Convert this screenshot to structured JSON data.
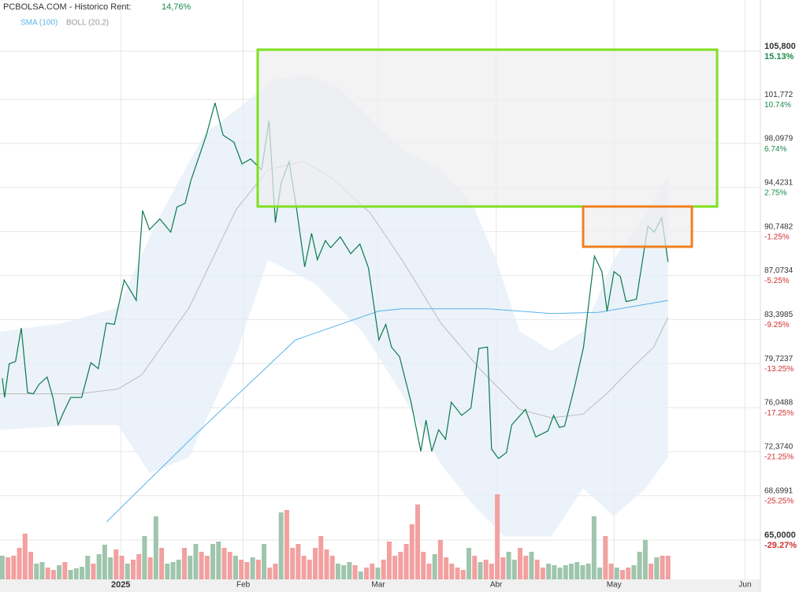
{
  "chart_data": {
    "type": "line",
    "title": "PCBOLSA.COM - Historico  Rent:",
    "subtitle": "14,76%",
    "color": "#0b7a4c",
    "grid": true,
    "xlim": [
      0,
      132
    ],
    "xticks": [
      {
        "value": 21,
        "label": "2025"
      },
      {
        "value": 42.3,
        "label": "Feb"
      },
      {
        "value": 65.8,
        "label": "Mar"
      },
      {
        "value": 86.3,
        "label": "Abr"
      },
      {
        "value": 106.8,
        "label": "May"
      },
      {
        "value": 129.6,
        "label": "Jun"
      }
    ],
    "ylim": [
      65,
      105.8
    ],
    "yticks": [
      {
        "value": 105.8,
        "label": "105,800"
      },
      {
        "value": 101.772,
        "label": "101,772"
      },
      {
        "value": 98.0979,
        "label": "98,0979"
      },
      {
        "value": 94.4231,
        "label": "94,4231"
      },
      {
        "value": 90.7482,
        "label": "90,7482"
      },
      {
        "value": 87.0734,
        "label": "87,0734"
      },
      {
        "value": 83.3985,
        "label": "83,3985"
      },
      {
        "value": 79.7237,
        "label": "79,7237"
      },
      {
        "value": 76.0488,
        "label": "76,0488"
      },
      {
        "value": 72.374,
        "label": "72,3740"
      },
      {
        "value": 68.6991,
        "label": "68,6991"
      },
      {
        "value": 65,
        "label": "65,0000"
      }
    ],
    "y2lim": [
      -29.27,
      15.13
    ],
    "y2ticks": [
      {
        "value": 15.13,
        "label": "15.13%"
      },
      {
        "value": 10.74,
        "label": "10.74%"
      },
      {
        "value": 6.74,
        "label": "6.74%"
      },
      {
        "value": 2.75,
        "label": "2.75%"
      },
      {
        "value": -1.25,
        "label": "-1.25%"
      },
      {
        "value": -5.25,
        "label": "-5.25%"
      },
      {
        "value": -9.25,
        "label": "-9.25%"
      },
      {
        "value": -13.25,
        "label": "-13.25%"
      },
      {
        "value": -17.25,
        "label": "-17.25%"
      },
      {
        "value": -21.25,
        "label": "-21.25%"
      },
      {
        "value": -25.25,
        "label": "-25.25%"
      },
      {
        "value": -29.27,
        "label": "-29.27%"
      }
    ],
    "x": [
      0.4,
      0.8,
      1.6,
      2.7,
      3.7,
      4.8,
      5.8,
      6.8,
      8.2,
      9.2,
      10.1,
      11,
      12.3,
      14.2,
      15.8,
      17.1,
      18.5,
      19.9,
      21.6,
      23.7,
      24.8,
      26,
      27.8,
      29.7,
      30.8,
      32.2,
      33.2,
      35.9,
      37.4,
      38.8,
      40.7,
      42.1,
      43.6,
      45.5,
      46.8,
      47.9,
      48.9,
      50.3,
      51.6,
      53,
      54.2,
      55.2,
      56.6,
      57.5,
      59.2,
      61,
      62.6,
      64.1,
      65.9,
      67.1,
      68.1,
      69.5,
      71.5,
      73.2,
      74.1,
      75.1,
      76.3,
      77.5,
      78.5,
      80.3,
      81.9,
      83.3,
      84.8,
      85.5,
      86.7,
      88.1,
      89,
      91.4,
      93.2,
      95.3,
      96.3,
      97.3,
      98.2,
      99.9,
      101.5,
      103.4,
      104.7,
      105.6,
      106.8,
      107.9,
      108.9,
      110.7,
      112.7,
      113.8,
      115.1,
      116.2
    ],
    "values": [
      78.5,
      76.9,
      79.7,
      79.9,
      82.7,
      77.3,
      77.2,
      78.0,
      78.6,
      76.9,
      74.6,
      75.6,
      76.9,
      76.9,
      79.8,
      79.3,
      83.1,
      83.0,
      86.7,
      85.0,
      92.5,
      90.9,
      91.8,
      90.7,
      92.8,
      93.1,
      95.0,
      98.8,
      101.5,
      98.8,
      98.2,
      96.4,
      96.8,
      95.9,
      100.0,
      91.5,
      94.8,
      96.6,
      92.6,
      87.8,
      90.6,
      88.4,
      90.0,
      89.4,
      90.3,
      88.9,
      89.7,
      87.7,
      81.7,
      83.0,
      81.1,
      80.3,
      76.5,
      72.4,
      75.0,
      72.4,
      74.2,
      73.4,
      76.5,
      75.4,
      76.0,
      81.0,
      81.1,
      72.6,
      71.8,
      72.3,
      74.6,
      75.9,
      73.6,
      74.1,
      75.4,
      74.4,
      74.5,
      77.7,
      81.1,
      88.7,
      87.4,
      84.1,
      87.4,
      87.0,
      84.9,
      85.1,
      91.2,
      90.7,
      91.9,
      88.2
    ],
    "sma": {
      "name": "SMA (100)",
      "color": "#5ab4e8",
      "x": [
        18.5,
        34.2,
        51.4,
        65.8,
        69.9,
        84.9,
        95.9,
        104.1,
        116.2
      ],
      "values": [
        66.5,
        73.9,
        81.7,
        84.1,
        84.3,
        84.3,
        83.9,
        84.0,
        85.0
      ]
    },
    "boll": {
      "name": "BOLL (20,2)",
      "color": "#bbbbbb",
      "band_color": "#e4edf8",
      "x_mid": [
        0,
        13.7,
        20.5,
        24.7,
        32.9,
        41.1,
        46.6,
        52.7,
        57.5,
        64.4,
        69.9,
        76.7,
        83.6,
        90.4,
        95.9,
        101.4,
        105.5,
        109.6,
        113.7,
        116.2
      ],
      "mid": [
        77.2,
        77.2,
        77.6,
        78.8,
        84.4,
        92.6,
        95.9,
        96.6,
        95.3,
        92.3,
        88.4,
        83.1,
        79.2,
        75.9,
        75.2,
        75.5,
        77.2,
        79.2,
        81.1,
        83.6
      ],
      "x_upper": [
        0,
        11,
        20.5,
        27.4,
        35.6,
        41.1,
        47.9,
        53.4,
        58.9,
        64.4,
        69.9,
        76.7,
        82.2,
        86.3,
        90.4,
        95.9,
        101.4,
        106.8,
        112.3,
        116.2
      ],
      "upper": [
        82.4,
        83.1,
        84.4,
        91.7,
        98.9,
        100.9,
        103.5,
        103.8,
        102.8,
        100.2,
        97.6,
        95.9,
        93.0,
        88.4,
        82.4,
        80.8,
        82.4,
        88.4,
        92.3,
        95.3
      ],
      "x_lower": [
        0,
        13.7,
        20.5,
        26,
        32.9,
        41.1,
        46.6,
        54.8,
        63,
        69.9,
        76.7,
        82.2,
        87.7,
        95.9,
        101.4,
        106.8,
        112.3,
        116.2
      ],
      "lower": [
        74.2,
        74.6,
        74.6,
        70.6,
        71.9,
        80.5,
        88.4,
        86.4,
        82.4,
        77.2,
        71.3,
        68.0,
        65.3,
        65.3,
        69.3,
        67.0,
        69.3,
        71.9
      ]
    },
    "volume": {
      "vlim": [
        0,
        120
      ],
      "values": [
        30,
        28,
        30,
        40,
        58,
        35,
        20,
        22,
        15,
        12,
        18,
        22,
        12,
        14,
        16,
        30,
        20,
        32,
        44,
        28,
        38,
        30,
        20,
        25,
        32,
        55,
        28,
        80,
        40,
        20,
        22,
        25,
        40,
        30,
        45,
        35,
        30,
        45,
        48,
        40,
        35,
        30,
        25,
        22,
        28,
        25,
        45,
        15,
        20,
        85,
        88,
        40,
        45,
        30,
        25,
        40,
        55,
        38,
        30,
        20,
        18,
        22,
        18,
        10,
        15,
        20,
        15,
        25,
        48,
        30,
        35,
        45,
        70,
        95,
        35,
        20,
        32,
        50,
        28,
        20,
        15,
        12,
        40,
        30,
        22,
        25,
        20,
        108,
        28,
        35,
        25,
        40,
        30,
        35,
        25,
        15,
        20,
        18,
        15,
        18,
        20,
        22,
        18,
        20,
        80,
        15,
        55,
        20,
        15,
        12,
        15,
        18,
        35,
        50,
        20,
        28,
        30,
        30
      ],
      "colors": [
        "#9fc5ad",
        "#f2a0a0",
        "#f2a0a0",
        "#f2a0a0",
        "#f2a0a0",
        "#f2a0a0",
        "#9fc5ad",
        "#9fc5ad",
        "#f2a0a0",
        "#f2a0a0",
        "#9fc5ad",
        "#f2a0a0",
        "#9fc5ad",
        "#9fc5ad",
        "#9fc5ad",
        "#9fc5ad",
        "#f2a0a0",
        "#9fc5ad",
        "#9fc5ad",
        "#9fc5ad",
        "#f2a0a0",
        "#f2a0a0",
        "#9fc5ad",
        "#f2a0a0",
        "#f2a0a0",
        "#9fc5ad",
        "#f2a0a0",
        "#9fc5ad",
        "#f2a0a0",
        "#9fc5ad",
        "#9fc5ad",
        "#9fc5ad",
        "#f2a0a0",
        "#9fc5ad",
        "#9fc5ad",
        "#f2a0a0",
        "#f2a0a0",
        "#9fc5ad",
        "#9fc5ad",
        "#f2a0a0",
        "#f2a0a0",
        "#9fc5ad",
        "#f2a0a0",
        "#f2a0a0",
        "#9fc5ad",
        "#f2a0a0",
        "#9fc5ad",
        "#f2a0a0",
        "#f2a0a0",
        "#9fc5ad",
        "#f2a0a0",
        "#f2a0a0",
        "#f2a0a0",
        "#f2a0a0",
        "#f2a0a0",
        "#f2a0a0",
        "#f2a0a0",
        "#f2a0a0",
        "#f2a0a0",
        "#9fc5ad",
        "#9fc5ad",
        "#9fc5ad",
        "#f2a0a0",
        "#9fc5ad",
        "#f2a0a0",
        "#f2a0a0",
        "#9fc5ad",
        "#f2a0a0",
        "#f2a0a0",
        "#f2a0a0",
        "#f2a0a0",
        "#f2a0a0",
        "#f2a0a0",
        "#f2a0a0",
        "#f2a0a0",
        "#f2a0a0",
        "#9fc5ad",
        "#f2a0a0",
        "#f2a0a0",
        "#f2a0a0",
        "#f2a0a0",
        "#f2a0a0",
        "#9fc5ad",
        "#f2a0a0",
        "#9fc5ad",
        "#f2a0a0",
        "#f2a0a0",
        "#f2a0a0",
        "#f2a0a0",
        "#9fc5ad",
        "#9fc5ad",
        "#f2a0a0",
        "#f2a0a0",
        "#9fc5ad",
        "#f2a0a0",
        "#f2a0a0",
        "#9fc5ad",
        "#9fc5ad",
        "#9fc5ad",
        "#9fc5ad",
        "#9fc5ad",
        "#9fc5ad",
        "#9fc5ad",
        "#9fc5ad",
        "#9fc5ad",
        "#9fc5ad",
        "#f2a0a0",
        "#f2a0a0",
        "#9fc5ad",
        "#f2a0a0",
        "#f2a0a0",
        "#9fc5ad",
        "#9fc5ad",
        "#9fc5ad",
        "#f2a0a0",
        "#9fc5ad",
        "#f2a0a0",
        "#f2a0a0"
      ]
    }
  }
}
